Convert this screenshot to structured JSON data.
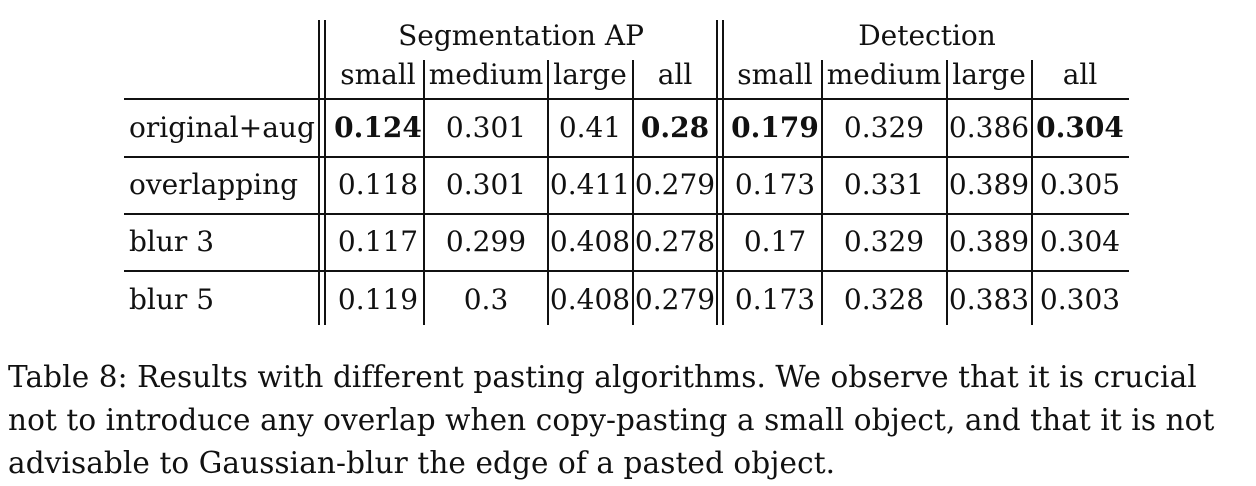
{
  "table": {
    "group_headers": [
      "Segmentation AP",
      "Detection"
    ],
    "sub_headers": [
      "small",
      "medium",
      "large",
      "all",
      "small",
      "medium",
      "large",
      "all"
    ],
    "rows": [
      {
        "label": "original+aug",
        "values": [
          "0.124",
          "0.301",
          "0.41",
          "0.28",
          "0.179",
          "0.329",
          "0.386",
          "0.304"
        ],
        "bold": [
          true,
          false,
          false,
          true,
          true,
          false,
          false,
          true
        ]
      },
      {
        "label": "overlapping",
        "values": [
          "0.118",
          "0.301",
          "0.411",
          "0.279",
          "0.173",
          "0.331",
          "0.389",
          "0.305"
        ],
        "bold": [
          false,
          false,
          false,
          false,
          false,
          false,
          false,
          false
        ]
      },
      {
        "label": "blur 3",
        "values": [
          "0.117",
          "0.299",
          "0.408",
          "0.278",
          "0.17",
          "0.329",
          "0.389",
          "0.304"
        ],
        "bold": [
          false,
          false,
          false,
          false,
          false,
          false,
          false,
          false
        ]
      },
      {
        "label": "blur 5",
        "values": [
          "0.119",
          "0.3",
          "0.408",
          "0.279",
          "0.173",
          "0.328",
          "0.383",
          "0.303"
        ],
        "bold": [
          false,
          false,
          false,
          false,
          false,
          false,
          false,
          false
        ]
      }
    ]
  },
  "caption": "Table 8: Results with different pasting algorithms. We observe that it is crucial not to introduce any overlap when copy-pasting a small object, and that it is not advisable to Gaussian-blur the edge of a pasted object."
}
